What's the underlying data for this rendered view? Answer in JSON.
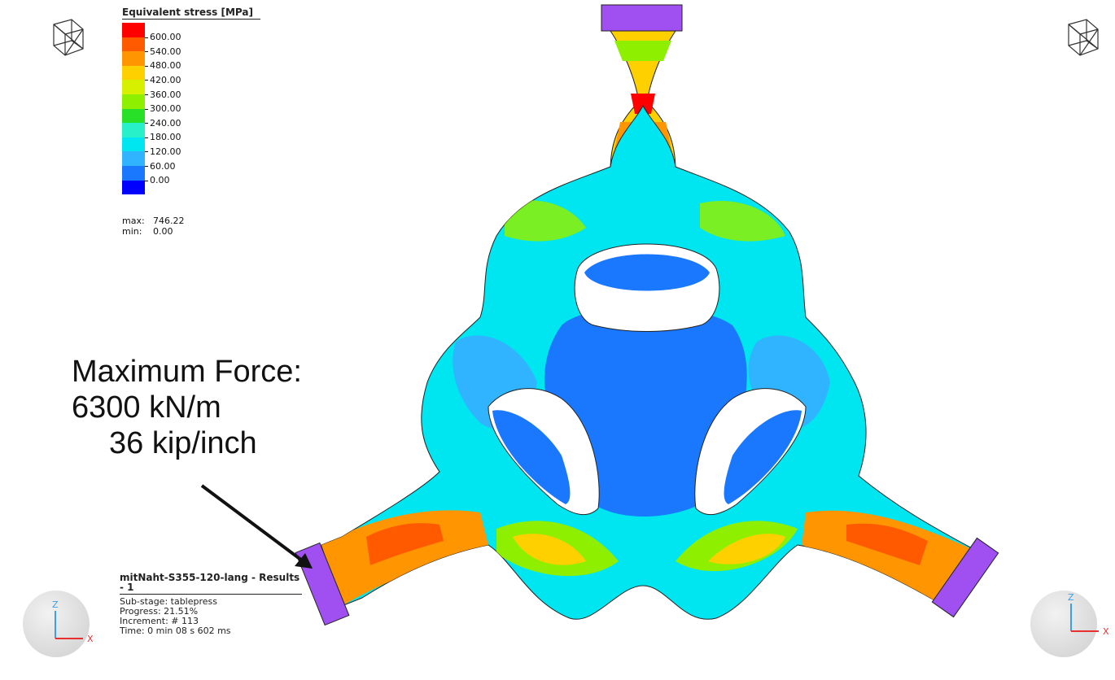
{
  "legend": {
    "title": "Equivalent stress [MPa]",
    "ticks": [
      "600.00",
      "540.00",
      "480.00",
      "420.00",
      "360.00",
      "300.00",
      "240.00",
      "180.00",
      "120.00",
      "60.00",
      "0.00"
    ],
    "colors": [
      "#ff0000",
      "#ff5a00",
      "#ff9500",
      "#ffd000",
      "#d7f000",
      "#8ef000",
      "#28e028",
      "#28f0c8",
      "#00e6f0",
      "#30b4ff",
      "#1a78ff",
      "#0000ff"
    ],
    "max_label": "max:",
    "max_value": "746.22",
    "min_label": "min:",
    "min_value": "0.00"
  },
  "annotation": {
    "line1": "Maximum Force:",
    "line2": "6300 kN/m",
    "line3": "36 kip/inch"
  },
  "info": {
    "title": "mitNaht-S355-120-lang - Results - 1",
    "substage": "Sub-stage: tablepress",
    "progress": "Progress: 21.51%",
    "increment": "Increment: # 113",
    "time": "Time: 0 min 08 s 602 ms"
  },
  "triad": {
    "z_label": "Z",
    "x_label": "X",
    "z_color": "#3aa0e8",
    "x_color": "#e83030"
  },
  "model": {
    "load_plate_color": "#a050f0",
    "background_stress": "#00e6f0",
    "hole_color": "#ffffff"
  }
}
